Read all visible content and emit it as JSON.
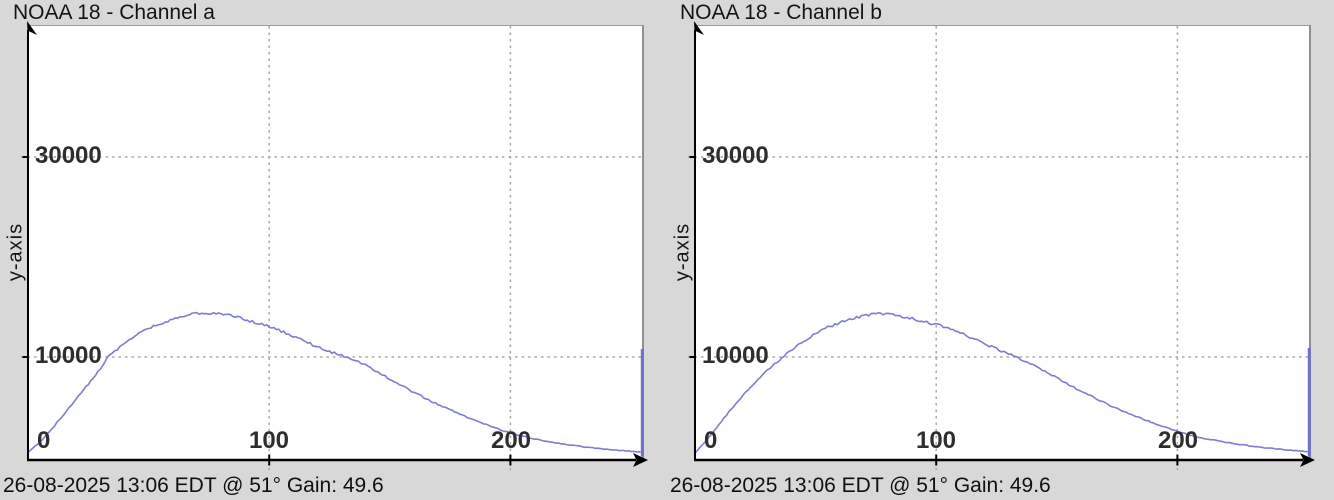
{
  "colors": {
    "background": "#d8d8d8",
    "plot_background": "#ffffff",
    "axis": "#000000",
    "grid": "#a8a8a8",
    "curve": "#7d7dd2",
    "spike": "#6f6fce",
    "text": "#141414"
  },
  "chart_data": [
    {
      "type": "line",
      "title": "NOAA 18 - Channel a",
      "ylabel": "y-axis",
      "footer": "26-08-2025 13:06 EDT @ 51° Gain: 49.6",
      "x_range": [
        0,
        255
      ],
      "y_range": [
        0,
        43200
      ],
      "grid": true,
      "x_ticks": [
        {
          "value": 0,
          "label": "0"
        },
        {
          "value": 100,
          "label": "100"
        },
        {
          "value": 200,
          "label": "200"
        }
      ],
      "y_ticks": [
        {
          "value": 10000,
          "label": "10000"
        },
        {
          "value": 30000,
          "label": "30000"
        }
      ],
      "series": [
        {
          "name": "histogram",
          "color": "#7d7dd2",
          "points": [
            [
              0,
              450
            ],
            [
              5,
              1500
            ],
            [
              10,
              2850
            ],
            [
              15,
              4300
            ],
            [
              20,
              5800
            ],
            [
              25,
              7300
            ],
            [
              28,
              8200
            ],
            [
              31,
              9200
            ],
            [
              33,
              10000
            ],
            [
              35,
              10400
            ],
            [
              40,
              11400
            ],
            [
              45,
              12200
            ],
            [
              50,
              12850
            ],
            [
              55,
              13350
            ],
            [
              60,
              13800
            ],
            [
              65,
              14150
            ],
            [
              70,
              14350
            ],
            [
              75,
              14400
            ],
            [
              80,
              14250
            ],
            [
              85,
              14100
            ],
            [
              90,
              13750
            ],
            [
              95,
              13400
            ],
            [
              100,
              13050
            ],
            [
              105,
              12600
            ],
            [
              110,
              12100
            ],
            [
              115,
              11550
            ],
            [
              120,
              11000
            ],
            [
              125,
              10550
            ],
            [
              130,
              10150
            ],
            [
              135,
              9750
            ],
            [
              140,
              9200
            ],
            [
              145,
              8500
            ],
            [
              150,
              7800
            ],
            [
              155,
              7100
            ],
            [
              160,
              6450
            ],
            [
              165,
              5850
            ],
            [
              170,
              5250
            ],
            [
              175,
              4700
            ],
            [
              180,
              4200
            ],
            [
              185,
              3700
            ],
            [
              190,
              3250
            ],
            [
              195,
              2800
            ],
            [
              200,
              2400
            ],
            [
              205,
              2100
            ],
            [
              210,
              1800
            ],
            [
              215,
              1570
            ],
            [
              220,
              1370
            ],
            [
              225,
              1190
            ],
            [
              230,
              1030
            ],
            [
              235,
              890
            ],
            [
              240,
              770
            ],
            [
              245,
              660
            ],
            [
              250,
              575
            ],
            [
              254,
              510
            ]
          ]
        }
      ],
      "spike": {
        "x": 255,
        "value": 10800
      }
    },
    {
      "type": "line",
      "title": "NOAA 18 - Channel b",
      "ylabel": "y-axis",
      "footer": "26-08-2025 13:06 EDT @ 51° Gain: 49.6",
      "x_range": [
        0,
        255
      ],
      "y_range": [
        0,
        43200
      ],
      "grid": true,
      "x_ticks": [
        {
          "value": 0,
          "label": "0"
        },
        {
          "value": 100,
          "label": "100"
        },
        {
          "value": 200,
          "label": "200"
        }
      ],
      "y_ticks": [
        {
          "value": 10000,
          "label": "10000"
        },
        {
          "value": 30000,
          "label": "30000"
        }
      ],
      "series": [
        {
          "name": "histogram",
          "color": "#7d7dd2",
          "points": [
            [
              0,
              400
            ],
            [
              5,
              1700
            ],
            [
              10,
              3300
            ],
            [
              15,
              4800
            ],
            [
              20,
              6200
            ],
            [
              25,
              7500
            ],
            [
              30,
              8700
            ],
            [
              35,
              9700
            ],
            [
              40,
              10700
            ],
            [
              45,
              11600
            ],
            [
              50,
              12350
            ],
            [
              55,
              12950
            ],
            [
              60,
              13450
            ],
            [
              65,
              13850
            ],
            [
              70,
              14150
            ],
            [
              75,
              14300
            ],
            [
              80,
              14250
            ],
            [
              85,
              14100
            ],
            [
              90,
              13850
            ],
            [
              95,
              13550
            ],
            [
              100,
              13250
            ],
            [
              105,
              12850
            ],
            [
              110,
              12400
            ],
            [
              115,
              11900
            ],
            [
              120,
              11350
            ],
            [
              125,
              10800
            ],
            [
              130,
              10300
            ],
            [
              135,
              9800
            ],
            [
              140,
              9250
            ],
            [
              145,
              8600
            ],
            [
              150,
              7900
            ],
            [
              155,
              7250
            ],
            [
              160,
              6600
            ],
            [
              165,
              6000
            ],
            [
              170,
              5400
            ],
            [
              175,
              4850
            ],
            [
              180,
              4350
            ],
            [
              185,
              3850
            ],
            [
              190,
              3400
            ],
            [
              195,
              2950
            ],
            [
              200,
              2550
            ],
            [
              205,
              2200
            ],
            [
              210,
              1900
            ],
            [
              215,
              1680
            ],
            [
              220,
              1480
            ],
            [
              225,
              1290
            ],
            [
              230,
              1120
            ],
            [
              235,
              970
            ],
            [
              240,
              840
            ],
            [
              245,
              720
            ],
            [
              250,
              620
            ],
            [
              254,
              540
            ]
          ]
        }
      ],
      "spike": {
        "x": 255,
        "value": 10900
      }
    }
  ]
}
